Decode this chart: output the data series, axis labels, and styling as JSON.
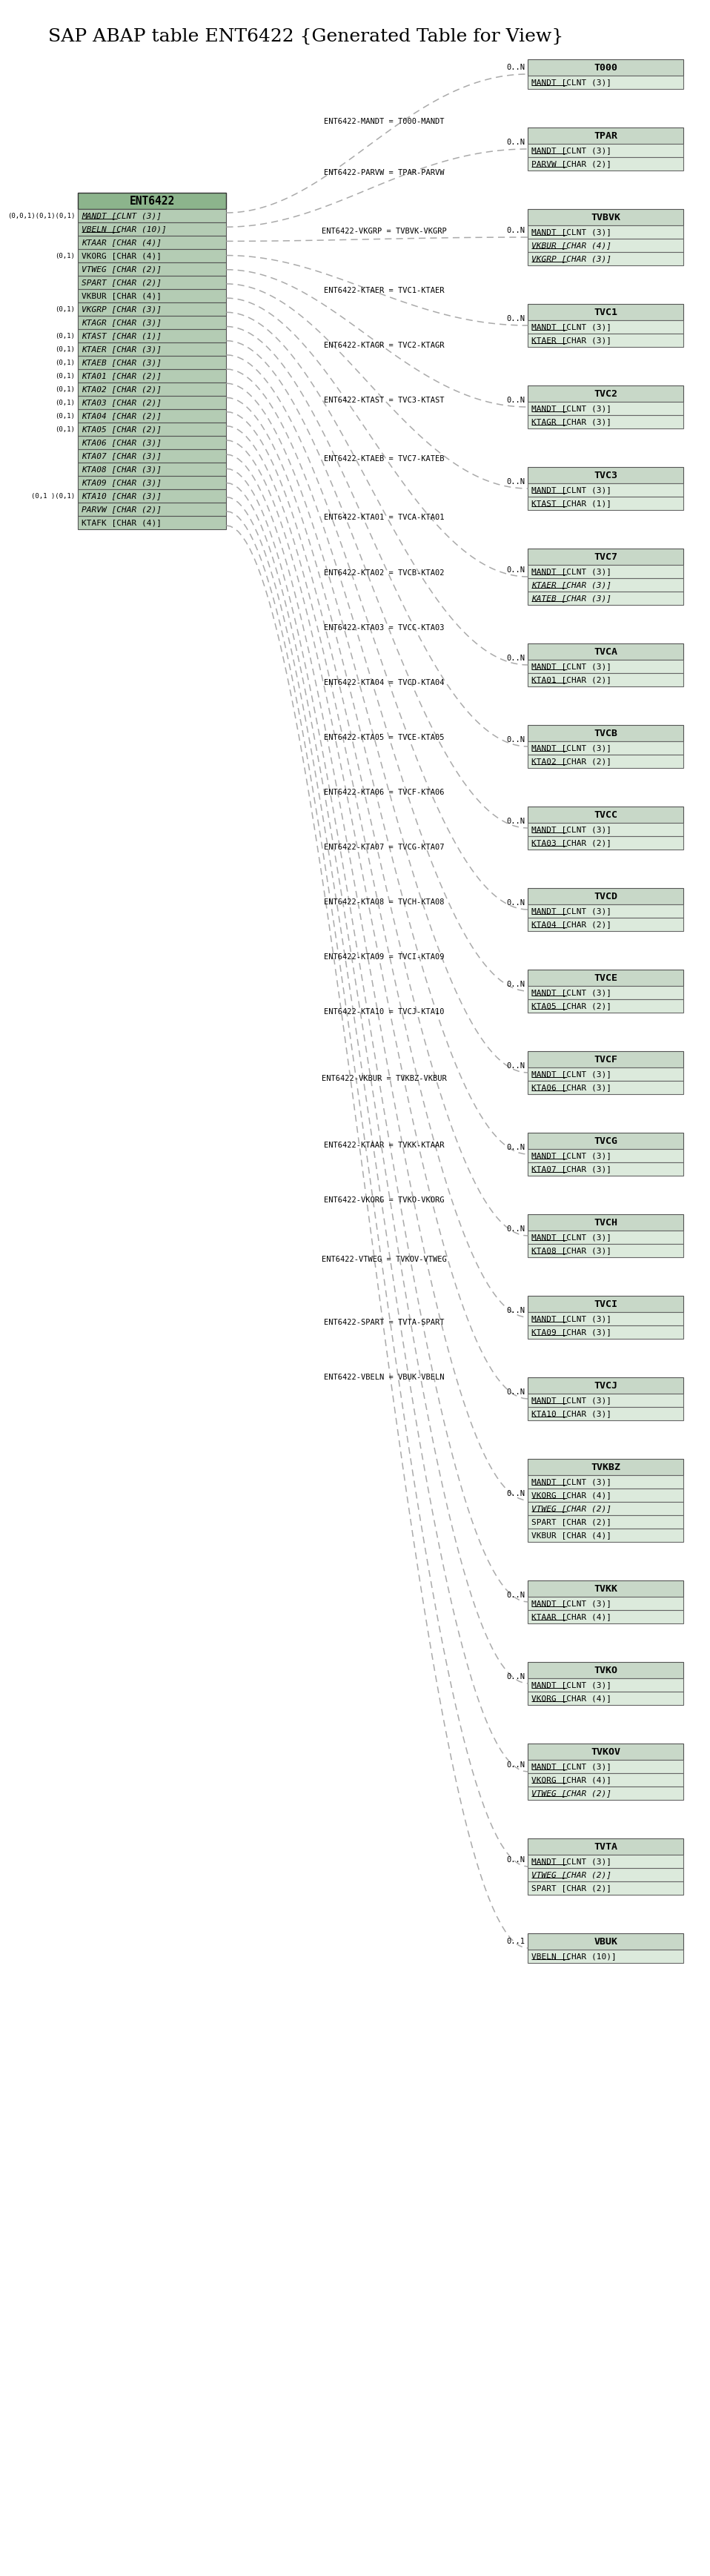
{
  "title": "SAP ABAP table ENT6422 {Generated Table for View}",
  "bg_color": "#ffffff",
  "header_color": "#c8d8c8",
  "field_color": "#dceadc",
  "center_header_color": "#8cb48c",
  "center_field_color": "#b4ccb4",
  "line_color": "#aaaaaa",
  "center_table": {
    "name": "ENT6422",
    "fields": [
      {
        "name": "MANDT",
        "type": "CLNT (3)",
        "is_key": true,
        "italic": true
      },
      {
        "name": "VBELN",
        "type": "CHAR (10)",
        "is_key": true,
        "italic": true
      },
      {
        "name": "KTAAR",
        "type": "CHAR (4)",
        "is_key": false,
        "italic": true
      },
      {
        "name": "VKORG",
        "type": "CHAR (4)",
        "is_key": false,
        "italic": false
      },
      {
        "name": "VTWEG",
        "type": "CHAR (2)",
        "is_key": false,
        "italic": true
      },
      {
        "name": "SPART",
        "type": "CHAR (2)",
        "is_key": false,
        "italic": true
      },
      {
        "name": "VKBUR",
        "type": "CHAR (4)",
        "is_key": false,
        "italic": false
      },
      {
        "name": "VKGRP",
        "type": "CHAR (3)",
        "is_key": false,
        "italic": true
      },
      {
        "name": "KTAGR",
        "type": "CHAR (3)",
        "is_key": false,
        "italic": true
      },
      {
        "name": "KTAST",
        "type": "CHAR (1)",
        "is_key": false,
        "italic": true
      },
      {
        "name": "KTAER",
        "type": "CHAR (3)",
        "is_key": false,
        "italic": true
      },
      {
        "name": "KTAEB",
        "type": "CHAR (3)",
        "is_key": false,
        "italic": true
      },
      {
        "name": "KTA01",
        "type": "CHAR (2)",
        "is_key": false,
        "italic": true
      },
      {
        "name": "KTA02",
        "type": "CHAR (2)",
        "is_key": false,
        "italic": true
      },
      {
        "name": "KTA03",
        "type": "CHAR (2)",
        "is_key": false,
        "italic": true
      },
      {
        "name": "KTA04",
        "type": "CHAR (2)",
        "is_key": false,
        "italic": true
      },
      {
        "name": "KTA05",
        "type": "CHAR (2)",
        "is_key": false,
        "italic": true
      },
      {
        "name": "KTA06",
        "type": "CHAR (3)",
        "is_key": false,
        "italic": true
      },
      {
        "name": "KTA07",
        "type": "CHAR (3)",
        "is_key": false,
        "italic": true
      },
      {
        "name": "KTA08",
        "type": "CHAR (3)",
        "is_key": false,
        "italic": true
      },
      {
        "name": "KTA09",
        "type": "CHAR (3)",
        "is_key": false,
        "italic": true
      },
      {
        "name": "KTA10",
        "type": "CHAR (3)",
        "is_key": false,
        "italic": true
      },
      {
        "name": "PARVW",
        "type": "CHAR (2)",
        "is_key": false,
        "italic": true
      },
      {
        "name": "KTAFK",
        "type": "CHAR (4)",
        "is_key": false,
        "italic": false
      }
    ],
    "left_labels": [
      {
        "row": 0,
        "label": "(0,0,1)(0,1)(0,1)"
      },
      {
        "row": 3,
        "label": "(0,1)"
      },
      {
        "row": 7,
        "label": "(0,1)"
      },
      {
        "row": 9,
        "label": "(0,1)"
      },
      {
        "row": 10,
        "label": "(0,1)"
      },
      {
        "row": 11,
        "label": "(0,1)"
      },
      {
        "row": 12,
        "label": "(0,1)"
      },
      {
        "row": 13,
        "label": "(0,1)"
      },
      {
        "row": 14,
        "label": "(0,1)"
      },
      {
        "row": 15,
        "label": "(0,1)"
      },
      {
        "row": 16,
        "label": "(0,1)"
      },
      {
        "row": 21,
        "label": "(0,1 )(0,1)"
      }
    ]
  },
  "related_tables": [
    {
      "name": "T000",
      "relation_label": "ENT6422-MANDT = T000-MANDT",
      "cardinality": "0..N",
      "fields": [
        {
          "name": "MANDT",
          "type": "CLNT (3)",
          "is_key": true,
          "italic": false
        }
      ]
    },
    {
      "name": "TPAR",
      "relation_label": "ENT6422-PARVW = TPAR-PARVW",
      "cardinality": "0..N",
      "fields": [
        {
          "name": "MANDT",
          "type": "CLNT (3)",
          "is_key": true,
          "italic": false
        },
        {
          "name": "PARVW",
          "type": "CHAR (2)",
          "is_key": true,
          "italic": false
        }
      ]
    },
    {
      "name": "TVBVK",
      "relation_label": "ENT6422-VKGRP = TVBVK-VKGRP",
      "cardinality": "0..N",
      "fields": [
        {
          "name": "MANDT",
          "type": "CLNT (3)",
          "is_key": true,
          "italic": false
        },
        {
          "name": "VKBUR",
          "type": "CHAR (4)",
          "is_key": true,
          "italic": true
        },
        {
          "name": "VKGRP",
          "type": "CHAR (3)",
          "is_key": true,
          "italic": true
        }
      ]
    },
    {
      "name": "TVC1",
      "relation_label": "ENT6422-KTAER = TVC1-KTAER",
      "cardinality": "0..N",
      "fields": [
        {
          "name": "MANDT",
          "type": "CLNT (3)",
          "is_key": true,
          "italic": false
        },
        {
          "name": "KTAER",
          "type": "CHAR (3)",
          "is_key": true,
          "italic": false
        }
      ]
    },
    {
      "name": "TVC2",
      "relation_label": "ENT6422-KTAGR = TVC2-KTAGR",
      "cardinality": "0..N",
      "fields": [
        {
          "name": "MANDT",
          "type": "CLNT (3)",
          "is_key": true,
          "italic": false
        },
        {
          "name": "KTAGR",
          "type": "CHAR (3)",
          "is_key": true,
          "italic": false
        }
      ]
    },
    {
      "name": "TVC3",
      "relation_label": "ENT6422-KTAST = TVC3-KTAST",
      "cardinality": "0..N",
      "fields": [
        {
          "name": "MANDT",
          "type": "CLNT (3)",
          "is_key": true,
          "italic": false
        },
        {
          "name": "KTAST",
          "type": "CHAR (1)",
          "is_key": true,
          "italic": false
        }
      ]
    },
    {
      "name": "TVC7",
      "relation_label": "ENT6422-KTAEB = TVC7-KATEB",
      "cardinality": "0..N",
      "fields": [
        {
          "name": "MANDT",
          "type": "CLNT (3)",
          "is_key": true,
          "italic": false
        },
        {
          "name": "KTAER",
          "type": "CHAR (3)",
          "is_key": true,
          "italic": true
        },
        {
          "name": "KATEB",
          "type": "CHAR (3)",
          "is_key": true,
          "italic": true
        }
      ]
    },
    {
      "name": "TVCA",
      "relation_label": "ENT6422-KTA01 = TVCA-KTA01",
      "cardinality": "0..N",
      "fields": [
        {
          "name": "MANDT",
          "type": "CLNT (3)",
          "is_key": true,
          "italic": false
        },
        {
          "name": "KTA01",
          "type": "CHAR (2)",
          "is_key": true,
          "italic": false
        }
      ]
    },
    {
      "name": "TVCB",
      "relation_label": "ENT6422-KTA02 = TVCB-KTA02",
      "cardinality": "0..N",
      "fields": [
        {
          "name": "MANDT",
          "type": "CLNT (3)",
          "is_key": true,
          "italic": false
        },
        {
          "name": "KTA02",
          "type": "CHAR (2)",
          "is_key": true,
          "italic": false
        }
      ]
    },
    {
      "name": "TVCC",
      "relation_label": "ENT6422-KTA03 = TVCC-KTA03",
      "cardinality": "0..N",
      "fields": [
        {
          "name": "MANDT",
          "type": "CLNT (3)",
          "is_key": true,
          "italic": false
        },
        {
          "name": "KTA03",
          "type": "CHAR (2)",
          "is_key": true,
          "italic": false
        }
      ]
    },
    {
      "name": "TVCD",
      "relation_label": "ENT6422-KTA04 = TVCD-KTA04",
      "cardinality": "0..N",
      "fields": [
        {
          "name": "MANDT",
          "type": "CLNT (3)",
          "is_key": true,
          "italic": false
        },
        {
          "name": "KTA04",
          "type": "CHAR (2)",
          "is_key": true,
          "italic": false
        }
      ]
    },
    {
      "name": "TVCE",
      "relation_label": "ENT6422-KTA05 = TVCE-KTA05",
      "cardinality": "0..N",
      "fields": [
        {
          "name": "MANDT",
          "type": "CLNT (3)",
          "is_key": true,
          "italic": false
        },
        {
          "name": "KTA05",
          "type": "CHAR (2)",
          "is_key": true,
          "italic": false
        }
      ]
    },
    {
      "name": "TVCF",
      "relation_label": "ENT6422-KTA06 = TVCF-KTA06",
      "cardinality": "0..N",
      "fields": [
        {
          "name": "MANDT",
          "type": "CLNT (3)",
          "is_key": true,
          "italic": false
        },
        {
          "name": "KTA06",
          "type": "CHAR (3)",
          "is_key": true,
          "italic": false
        }
      ]
    },
    {
      "name": "TVCG",
      "relation_label": "ENT6422-KTA07 = TVCG-KTA07",
      "cardinality": "0..N",
      "fields": [
        {
          "name": "MANDT",
          "type": "CLNT (3)",
          "is_key": true,
          "italic": false
        },
        {
          "name": "KTA07",
          "type": "CHAR (3)",
          "is_key": true,
          "italic": false
        }
      ]
    },
    {
      "name": "TVCH",
      "relation_label": "ENT6422-KTA08 = TVCH-KTA08",
      "cardinality": "0..N",
      "fields": [
        {
          "name": "MANDT",
          "type": "CLNT (3)",
          "is_key": true,
          "italic": false
        },
        {
          "name": "KTA08",
          "type": "CHAR (3)",
          "is_key": true,
          "italic": false
        }
      ]
    },
    {
      "name": "TVCI",
      "relation_label": "ENT6422-KTA09 = TVCI-KTA09",
      "cardinality": "0..N",
      "fields": [
        {
          "name": "MANDT",
          "type": "CLNT (3)",
          "is_key": true,
          "italic": false
        },
        {
          "name": "KTA09",
          "type": "CHAR (3)",
          "is_key": true,
          "italic": false
        }
      ]
    },
    {
      "name": "TVCJ",
      "relation_label": "ENT6422-KTA10 = TVCJ-KTA10",
      "cardinality": "0..N",
      "fields": [
        {
          "name": "MANDT",
          "type": "CLNT (3)",
          "is_key": true,
          "italic": false
        },
        {
          "name": "KTA10",
          "type": "CHAR (3)",
          "is_key": true,
          "italic": false
        }
      ]
    },
    {
      "name": "TVKBZ",
      "relation_label": "ENT6422-VKBUR = TVKBZ-VKBUR",
      "cardinality": "0..N",
      "fields": [
        {
          "name": "MANDT",
          "type": "CLNT (3)",
          "is_key": true,
          "italic": false
        },
        {
          "name": "VKORG",
          "type": "CHAR (4)",
          "is_key": true,
          "italic": false
        },
        {
          "name": "VTWEG",
          "type": "CHAR (2)",
          "is_key": true,
          "italic": true
        },
        {
          "name": "SPART",
          "type": "CHAR (2)",
          "is_key": false,
          "italic": false
        },
        {
          "name": "VKBUR",
          "type": "CHAR (4)",
          "is_key": false,
          "italic": false
        }
      ]
    },
    {
      "name": "TVKK",
      "relation_label": "ENT6422-KTAAR = TVKK-KTAAR",
      "cardinality": "0..N",
      "fields": [
        {
          "name": "MANDT",
          "type": "CLNT (3)",
          "is_key": true,
          "italic": false
        },
        {
          "name": "KTAAR",
          "type": "CHAR (4)",
          "is_key": true,
          "italic": false
        }
      ]
    },
    {
      "name": "TVKO",
      "relation_label": "ENT6422-VKORG = TVKO-VKORG",
      "cardinality": "0..N",
      "fields": [
        {
          "name": "MANDT",
          "type": "CLNT (3)",
          "is_key": true,
          "italic": false
        },
        {
          "name": "VKORG",
          "type": "CHAR (4)",
          "is_key": true,
          "italic": false
        }
      ]
    },
    {
      "name": "TVKOV",
      "relation_label": "ENT6422-VTWEG = TVKOV-VTWEG",
      "cardinality": "0..N",
      "fields": [
        {
          "name": "MANDT",
          "type": "CLNT (3)",
          "is_key": true,
          "italic": false
        },
        {
          "name": "VKORG",
          "type": "CHAR (4)",
          "is_key": true,
          "italic": false
        },
        {
          "name": "VTWEG",
          "type": "CHAR (2)",
          "is_key": true,
          "italic": true
        }
      ]
    },
    {
      "name": "TVTA",
      "relation_label": "ENT6422-SPART = TVTA-SPART",
      "cardinality": "0..N",
      "fields": [
        {
          "name": "MANDT",
          "type": "CLNT (3)",
          "is_key": true,
          "italic": false
        },
        {
          "name": "VTWEG",
          "type": "CHAR (2)",
          "is_key": true,
          "italic": true
        },
        {
          "name": "SPART",
          "type": "CHAR (2)",
          "is_key": false,
          "italic": false
        }
      ]
    },
    {
      "name": "VBUK",
      "relation_label": "ENT6422-VBELN = VBUK-VBELN",
      "cardinality": "0..1",
      "fields": [
        {
          "name": "VBELN",
          "type": "CHAR (10)",
          "is_key": true,
          "italic": false
        }
      ]
    }
  ]
}
